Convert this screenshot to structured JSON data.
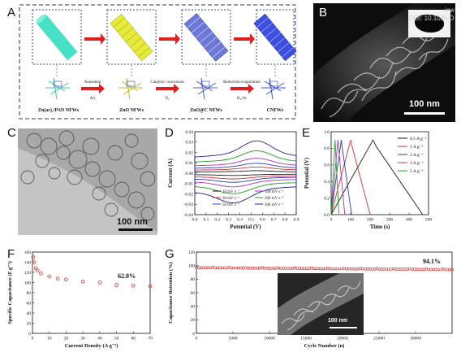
{
  "panels": {
    "A": {
      "letter": "A",
      "stages": [
        "Zn(ac)₂/PAN NFWs",
        "ZnO NFWs",
        "ZnO@C NFWs",
        "CNFWs"
      ],
      "steps": [
        {
          "label": "Annealing",
          "sub": "Air"
        },
        {
          "label": "Catalytic conversion",
          "sub": "N₂"
        },
        {
          "label": "Reduction-evaporation",
          "sub": "H₂/Ar"
        }
      ],
      "colors": {
        "stage1": "#46e0c4",
        "stage2": "#e6ea3a",
        "stage3": "#6b78d8",
        "stage4": "#3d4fe0",
        "arrow": "#e02020"
      }
    },
    "B": {
      "letter": "B",
      "scale_bar": "100 nm",
      "overlay": "DOI: 10.1039/D",
      "overlay_right": "iew"
    },
    "C": {
      "letter": "C",
      "scale_bar": "100 nm"
    },
    "D": {
      "letter": "D"
    },
    "E": {
      "letter": "E"
    },
    "F": {
      "letter": "F",
      "annotation": "62.0%"
    },
    "G": {
      "letter": "G",
      "annotation": "94.1%",
      "inset_scale_bar": "100 nm"
    }
  },
  "chart_data": [
    {
      "id": "D",
      "type": "line",
      "xlabel": "Potential (V)",
      "ylabel": "Current (A)",
      "xlim": [
        0.0,
        0.9
      ],
      "ylim": [
        -0.04,
        0.04
      ],
      "xticks": [
        "0.0",
        "0.1",
        "0.2",
        "0.3",
        "0.4",
        "0.5",
        "0.6",
        "0.7",
        "0.8",
        "0.9"
      ],
      "yticks": [
        "-0.04",
        "-0.03",
        "-0.02",
        "-0.01",
        "0.00",
        "0.01",
        "0.02",
        "0.03",
        "0.04"
      ],
      "series": [
        {
          "name": "10 mV s⁻¹",
          "color": "#1a1a1a",
          "amp": 0.002
        },
        {
          "name": "30 mV s⁻¹",
          "color": "#d83030",
          "amp": 0.005
        },
        {
          "name": "50 mV s⁻¹",
          "color": "#2a3ad0",
          "amp": 0.008
        },
        {
          "name": "100 mV s⁻¹",
          "color": "#b030b0",
          "amp": 0.012
        },
        {
          "name": "200 mV s⁻¹",
          "color": "#20a020",
          "amp": 0.018
        },
        {
          "name": "300 mV s⁻¹",
          "color": "#202090",
          "amp": 0.026
        }
      ]
    },
    {
      "id": "E",
      "type": "line",
      "xlabel": "Time (s)",
      "ylabel": "Potential (V)",
      "xlim": [
        0,
        500
      ],
      "ylim": [
        0,
        1.0
      ],
      "xticks": [
        "0",
        "100",
        "200",
        "300",
        "400",
        "500"
      ],
      "yticks": [
        "0.0",
        "0.2",
        "0.4",
        "0.6",
        "0.8",
        "1.0"
      ],
      "series": [
        {
          "name": "0.5 A g⁻¹",
          "color": "#1a1a1a",
          "charge_end": 215,
          "discharge_end": 470
        },
        {
          "name": "1 A g⁻¹",
          "color": "#d83030",
          "charge_end": 100,
          "discharge_end": 200
        },
        {
          "name": "2 A g⁻¹",
          "color": "#2a3ad0",
          "charge_end": 52,
          "discharge_end": 105
        },
        {
          "name": "3 A g⁻¹",
          "color": "#b030b0",
          "charge_end": 35,
          "discharge_end": 70
        },
        {
          "name": "5 A g⁻¹",
          "color": "#20a020",
          "charge_end": 20,
          "discharge_end": 40
        }
      ]
    },
    {
      "id": "F",
      "type": "scatter",
      "xlabel": "Current Density (A g⁻¹)",
      "ylabel": "Specific Capacitance (F g⁻¹)",
      "xlim": [
        0,
        70
      ],
      "ylim": [
        0,
        160
      ],
      "xticks": [
        "0",
        "10",
        "20",
        "30",
        "40",
        "50",
        "60",
        "70"
      ],
      "yticks": [
        "0",
        "20",
        "40",
        "60",
        "80",
        "100",
        "120",
        "140",
        "160"
      ],
      "x": [
        0.5,
        1,
        2,
        3,
        5,
        10,
        15,
        20,
        30,
        40,
        50,
        60,
        70
      ],
      "y": [
        150,
        140,
        128,
        124,
        118,
        112,
        108,
        106,
        102,
        100,
        95,
        94,
        93
      ],
      "color": "#d83030"
    },
    {
      "id": "G",
      "type": "scatter",
      "xlabel": "Cycle Number (n)",
      "ylabel": "Capacitance Retention (%)",
      "xlim": [
        0,
        35000
      ],
      "ylim": [
        0,
        120
      ],
      "xticks": [
        "0",
        "5000",
        "10000",
        "15000",
        "20000",
        "25000",
        "30000"
      ],
      "yticks": [
        "0",
        "20",
        "40",
        "60",
        "80",
        "100",
        "120"
      ],
      "x_start": 0,
      "x_end": 35000,
      "n_points": 110,
      "y_start": 97,
      "y_end": 94.1,
      "color": "#d83030"
    }
  ]
}
